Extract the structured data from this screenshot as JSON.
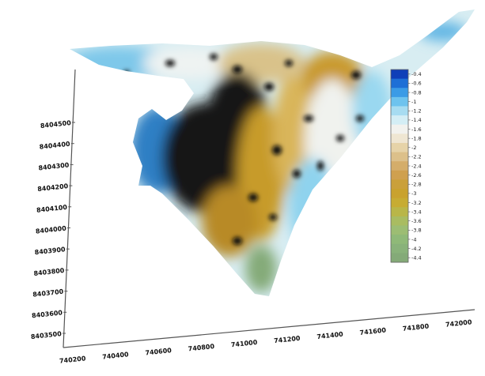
{
  "chart_data": {
    "type": "surface",
    "title": "",
    "xlabel": "",
    "ylabel": "",
    "y_ticks": [
      "8404500",
      "8404400",
      "8404300",
      "8404200",
      "8404100",
      "8404000",
      "8403900",
      "8403800",
      "8403700",
      "8403600",
      "8403500"
    ],
    "x_ticks": [
      "740200",
      "740400",
      "740600",
      "740800",
      "741000",
      "741200",
      "741400",
      "741600",
      "741800",
      "742000"
    ],
    "colorbar": {
      "labels": [
        "-0.4",
        "-0.6",
        "-0.8",
        "-1",
        "-1.2",
        "-1.4",
        "-1.6",
        "-1.8",
        "-2",
        "-2.2",
        "-2.4",
        "-2.6",
        "-2.8",
        "-3",
        "-3.2",
        "-3.4",
        "-3.6",
        "-3.8",
        "-4",
        "-4.2",
        "-4.4"
      ],
      "colors": [
        "#0f3fb8",
        "#1e6fd6",
        "#3b9be6",
        "#6ec3ee",
        "#a7dcf1",
        "#d4eef5",
        "#f2f2ee",
        "#efe6d2",
        "#e6d3a8",
        "#dcc08a",
        "#d4ad6a",
        "#cfa04f",
        "#caa03a",
        "#c9a22e",
        "#c7ac33",
        "#b9b648",
        "#a9bc61",
        "#9cbd73",
        "#8fb978",
        "#89b27a",
        "#84aa78"
      ]
    },
    "surface_colors": {
      "light": "#eef4f5",
      "sky": "#8fd3ee",
      "blue": "#3c9ad8",
      "tan": "#c9a348",
      "gold": "#c79b2c",
      "black": "#101010",
      "green": "#84aa78"
    }
  }
}
